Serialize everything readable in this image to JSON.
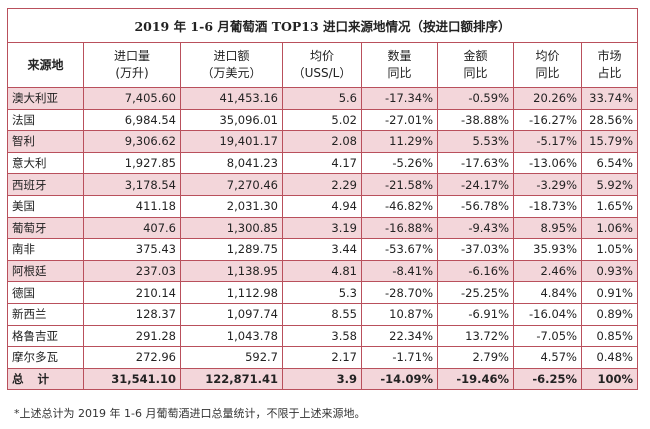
{
  "title": "2019 年 1-6 月葡萄酒 TOP13 进口来源地情况（按进口额排序）",
  "headers": [
    [
      "来源地",
      ""
    ],
    [
      "进口量",
      "(万升)"
    ],
    [
      "进口额",
      "（万美元）"
    ],
    [
      "均价",
      "（USS/L）"
    ],
    [
      "数量",
      "同比"
    ],
    [
      "金额",
      "同比"
    ],
    [
      "均价",
      "同比"
    ],
    [
      "市场",
      "占比"
    ]
  ],
  "rows": [
    [
      "澳大利亚",
      "7,405.60",
      "41,453.16",
      "5.6",
      "-17.34%",
      "-0.59%",
      "20.26%",
      "33.74%"
    ],
    [
      "法国",
      "6,984.54",
      "35,096.01",
      "5.02",
      "-27.01%",
      "-38.88%",
      "-16.27%",
      "28.56%"
    ],
    [
      "智利",
      "9,306.62",
      "19,401.17",
      "2.08",
      "11.29%",
      "5.53%",
      "-5.17%",
      "15.79%"
    ],
    [
      "意大利",
      "1,927.85",
      "8,041.23",
      "4.17",
      "-5.26%",
      "-17.63%",
      "-13.06%",
      "6.54%"
    ],
    [
      "西班牙",
      "3,178.54",
      "7,270.46",
      "2.29",
      "-21.58%",
      "-24.17%",
      "-3.29%",
      "5.92%"
    ],
    [
      "美国",
      "411.18",
      "2,031.30",
      "4.94",
      "-46.82%",
      "-56.78%",
      "-18.73%",
      "1.65%"
    ],
    [
      "葡萄牙",
      "407.6",
      "1,300.85",
      "3.19",
      "-16.88%",
      "-9.43%",
      "8.95%",
      "1.06%"
    ],
    [
      "南非",
      "375.43",
      "1,289.75",
      "3.44",
      "-53.67%",
      "-37.03%",
      "35.93%",
      "1.05%"
    ],
    [
      "阿根廷",
      "237.03",
      "1,138.95",
      "4.81",
      "-8.41%",
      "-6.16%",
      "2.46%",
      "0.93%"
    ],
    [
      "德国",
      "210.14",
      "1,112.98",
      "5.3",
      "-28.70%",
      "-25.25%",
      "4.84%",
      "0.91%"
    ],
    [
      "新西兰",
      "128.37",
      "1,097.74",
      "8.55",
      "10.87%",
      "-6.91%",
      "-16.04%",
      "0.89%"
    ],
    [
      "格鲁吉亚",
      "291.28",
      "1,043.78",
      "3.58",
      "22.34%",
      "13.72%",
      "-7.05%",
      "0.85%"
    ],
    [
      "摩尔多瓦",
      "272.96",
      "592.7",
      "2.17",
      "-1.71%",
      "2.79%",
      "4.57%",
      "0.48%"
    ],
    [
      "总计",
      "31,541.10",
      "122,871.41",
      "3.9",
      "-14.09%",
      "-19.46%",
      "-6.25%",
      "100%"
    ]
  ],
  "footnote": "*上述总计为 2019 年 1-6 月葡萄酒进口总量统计，不限于上述来源地。",
  "colors": {
    "border": "#b9505c",
    "highlight_row": "#f3d6da"
  }
}
